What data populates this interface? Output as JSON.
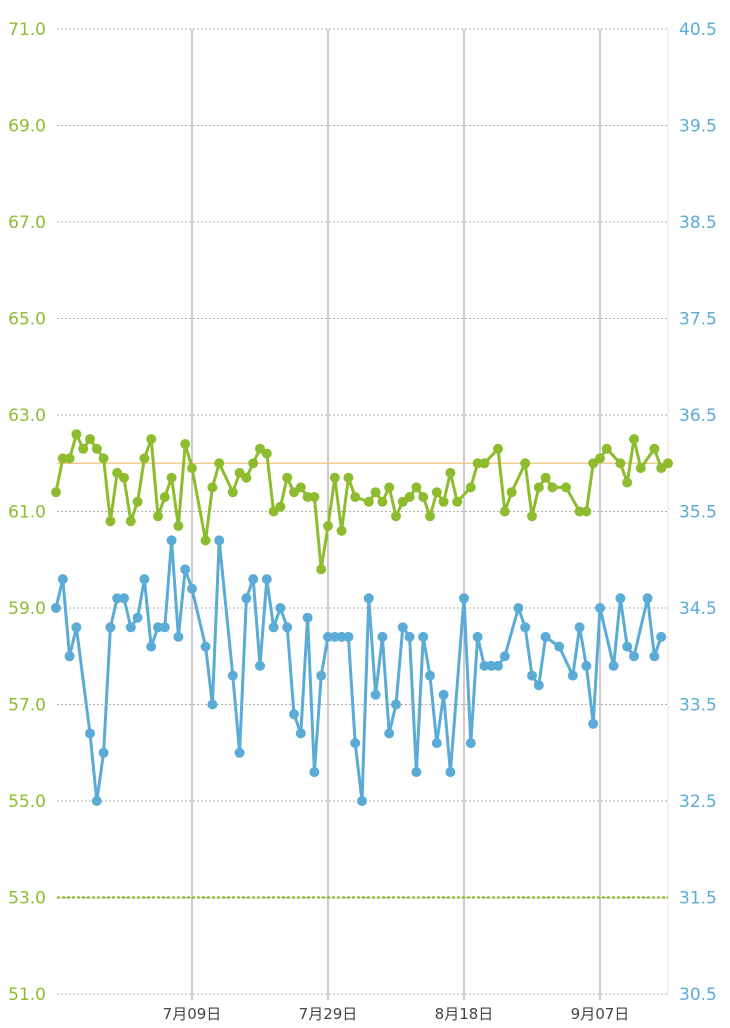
{
  "chart_data": {
    "type": "line",
    "colors": {
      "left_series": "#8dbd2f",
      "right_series": "#5aabd6",
      "reference_line": "#f2c27f",
      "threshold_line": "#8dbd2f",
      "grid": "#b3b3b3",
      "vgrid": "#9a9a9a"
    },
    "x_axis": {
      "start": "2023-06-19",
      "end": "2023-09-16",
      "ticks": [
        {
          "date": "2023-07-09",
          "label": "7月09日"
        },
        {
          "date": "2023-07-29",
          "label": "7月29日"
        },
        {
          "date": "2023-08-18",
          "label": "8月18日"
        },
        {
          "date": "2023-09-07",
          "label": "9月07日"
        }
      ]
    },
    "left_axis": {
      "ylim": [
        51.0,
        71.0
      ],
      "ticks": [
        "71.0",
        "69.0",
        "67.0",
        "65.0",
        "63.0",
        "61.0",
        "59.0",
        "57.0",
        "55.0",
        "53.0",
        "51.0"
      ]
    },
    "right_axis": {
      "ylim": [
        30.5,
        40.5
      ],
      "ticks": [
        "40.5",
        "39.5",
        "38.5",
        "37.5",
        "36.5",
        "35.5",
        "34.5",
        "33.5",
        "32.5",
        "31.5",
        "30.5"
      ]
    },
    "reference_line_value": 62.0,
    "threshold_line_value": 53.0,
    "series": [
      {
        "axis": "left",
        "points": [
          [
            "2023-06-19",
            61.4
          ],
          [
            "2023-06-20",
            62.1
          ],
          [
            "2023-06-21",
            62.1
          ],
          [
            "2023-06-22",
            62.6
          ],
          [
            "2023-06-23",
            62.3
          ],
          [
            "2023-06-24",
            62.5
          ],
          [
            "2023-06-25",
            62.3
          ],
          [
            "2023-06-26",
            62.1
          ],
          [
            "2023-06-27",
            60.8
          ],
          [
            "2023-06-28",
            61.8
          ],
          [
            "2023-06-29",
            61.7
          ],
          [
            "2023-06-30",
            60.8
          ],
          [
            "2023-07-01",
            61.2
          ],
          [
            "2023-07-02",
            62.1
          ],
          [
            "2023-07-03",
            62.5
          ],
          [
            "2023-07-04",
            60.9
          ],
          [
            "2023-07-05",
            61.3
          ],
          [
            "2023-07-06",
            61.7
          ],
          [
            "2023-07-07",
            60.7
          ],
          [
            "2023-07-08",
            62.4
          ],
          [
            "2023-07-09",
            61.9
          ],
          [
            "2023-07-11",
            60.4
          ],
          [
            "2023-07-12",
            61.5
          ],
          [
            "2023-07-13",
            62.0
          ],
          [
            "2023-07-15",
            61.4
          ],
          [
            "2023-07-16",
            61.8
          ],
          [
            "2023-07-17",
            61.7
          ],
          [
            "2023-07-18",
            62.0
          ],
          [
            "2023-07-19",
            62.3
          ],
          [
            "2023-07-20",
            62.2
          ],
          [
            "2023-07-21",
            61.0
          ],
          [
            "2023-07-22",
            61.1
          ],
          [
            "2023-07-23",
            61.7
          ],
          [
            "2023-07-24",
            61.4
          ],
          [
            "2023-07-25",
            61.5
          ],
          [
            "2023-07-26",
            61.3
          ],
          [
            "2023-07-27",
            61.3
          ],
          [
            "2023-07-28",
            59.8
          ],
          [
            "2023-07-29",
            60.7
          ],
          [
            "2023-07-30",
            61.7
          ],
          [
            "2023-07-31",
            60.6
          ],
          [
            "2023-08-01",
            61.7
          ],
          [
            "2023-08-02",
            61.3
          ],
          [
            "2023-08-04",
            61.2
          ],
          [
            "2023-08-05",
            61.4
          ],
          [
            "2023-08-06",
            61.2
          ],
          [
            "2023-08-07",
            61.5
          ],
          [
            "2023-08-08",
            60.9
          ],
          [
            "2023-08-09",
            61.2
          ],
          [
            "2023-08-10",
            61.3
          ],
          [
            "2023-08-11",
            61.5
          ],
          [
            "2023-08-12",
            61.3
          ],
          [
            "2023-08-13",
            60.9
          ],
          [
            "2023-08-14",
            61.4
          ],
          [
            "2023-08-15",
            61.2
          ],
          [
            "2023-08-16",
            61.8
          ],
          [
            "2023-08-17",
            61.2
          ],
          [
            "2023-08-19",
            61.5
          ],
          [
            "2023-08-20",
            62.0
          ],
          [
            "2023-08-21",
            62.0
          ],
          [
            "2023-08-23",
            62.3
          ],
          [
            "2023-08-24",
            61.0
          ],
          [
            "2023-08-25",
            61.4
          ],
          [
            "2023-08-27",
            62.0
          ],
          [
            "2023-08-28",
            60.9
          ],
          [
            "2023-08-29",
            61.5
          ],
          [
            "2023-08-30",
            61.7
          ],
          [
            "2023-08-31",
            61.5
          ],
          [
            "2023-09-02",
            61.5
          ],
          [
            "2023-09-04",
            61.0
          ],
          [
            "2023-09-05",
            61.0
          ],
          [
            "2023-09-06",
            62.0
          ],
          [
            "2023-09-07",
            62.1
          ],
          [
            "2023-09-08",
            62.3
          ],
          [
            "2023-09-10",
            62.0
          ],
          [
            "2023-09-11",
            61.6
          ],
          [
            "2023-09-12",
            62.5
          ],
          [
            "2023-09-13",
            61.9
          ],
          [
            "2023-09-15",
            62.3
          ],
          [
            "2023-09-16",
            61.9
          ],
          [
            "2023-09-17",
            62.0
          ]
        ]
      },
      {
        "axis": "right",
        "points": [
          [
            "2023-06-19",
            34.5
          ],
          [
            "2023-06-20",
            34.8
          ],
          [
            "2023-06-21",
            34.0
          ],
          [
            "2023-06-22",
            34.3
          ],
          [
            "2023-06-24",
            33.2
          ],
          [
            "2023-06-25",
            32.5
          ],
          [
            "2023-06-26",
            33.0
          ],
          [
            "2023-06-27",
            34.3
          ],
          [
            "2023-06-28",
            34.6
          ],
          [
            "2023-06-29",
            34.6
          ],
          [
            "2023-06-30",
            34.3
          ],
          [
            "2023-07-01",
            34.4
          ],
          [
            "2023-07-02",
            34.8
          ],
          [
            "2023-07-03",
            34.1
          ],
          [
            "2023-07-04",
            34.3
          ],
          [
            "2023-07-05",
            34.3
          ],
          [
            "2023-07-06",
            35.2
          ],
          [
            "2023-07-07",
            34.2
          ],
          [
            "2023-07-08",
            34.9
          ],
          [
            "2023-07-09",
            34.7
          ],
          [
            "2023-07-11",
            34.1
          ],
          [
            "2023-07-12",
            33.5
          ],
          [
            "2023-07-13",
            35.2
          ],
          [
            "2023-07-15",
            33.8
          ],
          [
            "2023-07-16",
            33.0
          ],
          [
            "2023-07-17",
            34.6
          ],
          [
            "2023-07-18",
            34.8
          ],
          [
            "2023-07-19",
            33.9
          ],
          [
            "2023-07-20",
            34.8
          ],
          [
            "2023-07-21",
            34.3
          ],
          [
            "2023-07-22",
            34.5
          ],
          [
            "2023-07-23",
            34.3
          ],
          [
            "2023-07-24",
            33.4
          ],
          [
            "2023-07-25",
            33.2
          ],
          [
            "2023-07-26",
            34.4
          ],
          [
            "2023-07-27",
            32.8
          ],
          [
            "2023-07-28",
            33.8
          ],
          [
            "2023-07-29",
            34.2
          ],
          [
            "2023-07-30",
            34.2
          ],
          [
            "2023-07-31",
            34.2
          ],
          [
            "2023-08-01",
            34.2
          ],
          [
            "2023-08-02",
            33.1
          ],
          [
            "2023-08-03",
            32.5
          ],
          [
            "2023-08-04",
            34.6
          ],
          [
            "2023-08-05",
            33.6
          ],
          [
            "2023-08-06",
            34.2
          ],
          [
            "2023-08-07",
            33.2
          ],
          [
            "2023-08-08",
            33.5
          ],
          [
            "2023-08-09",
            34.3
          ],
          [
            "2023-08-10",
            34.2
          ],
          [
            "2023-08-11",
            32.8
          ],
          [
            "2023-08-12",
            34.2
          ],
          [
            "2023-08-13",
            33.8
          ],
          [
            "2023-08-14",
            33.1
          ],
          [
            "2023-08-15",
            33.6
          ],
          [
            "2023-08-16",
            32.8
          ],
          [
            "2023-08-18",
            34.6
          ],
          [
            "2023-08-19",
            33.1
          ],
          [
            "2023-08-20",
            34.2
          ],
          [
            "2023-08-21",
            33.9
          ],
          [
            "2023-08-22",
            33.9
          ],
          [
            "2023-08-23",
            33.9
          ],
          [
            "2023-08-24",
            34.0
          ],
          [
            "2023-08-26",
            34.5
          ],
          [
            "2023-08-27",
            34.3
          ],
          [
            "2023-08-28",
            33.8
          ],
          [
            "2023-08-29",
            33.7
          ],
          [
            "2023-08-30",
            34.2
          ],
          [
            "2023-09-01",
            34.1
          ],
          [
            "2023-09-03",
            33.8
          ],
          [
            "2023-09-04",
            34.3
          ],
          [
            "2023-09-05",
            33.9
          ],
          [
            "2023-09-06",
            33.3
          ],
          [
            "2023-09-07",
            34.5
          ],
          [
            "2023-09-09",
            33.9
          ],
          [
            "2023-09-10",
            34.6
          ],
          [
            "2023-09-11",
            34.1
          ],
          [
            "2023-09-12",
            34.0
          ],
          [
            "2023-09-14",
            34.6
          ],
          [
            "2023-09-15",
            34.0
          ],
          [
            "2023-09-16",
            34.2
          ]
        ]
      }
    ]
  }
}
